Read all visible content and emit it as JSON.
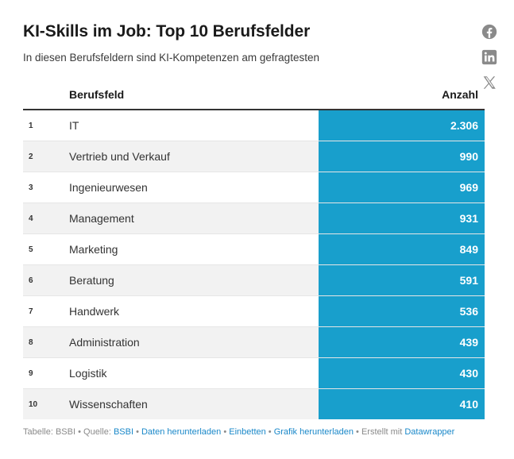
{
  "header": {
    "title": "KI-Skills im Job: Top 10 Berufsfelder",
    "subtitle": "In diesen Berufsfeldern sind KI-Kompetenzen am gefragtesten"
  },
  "share": {
    "icons": [
      "facebook-icon",
      "linkedin-icon",
      "x-icon"
    ],
    "icon_color": "#8a8a8a"
  },
  "chart_data": {
    "type": "table",
    "title": "KI-Skills im Job: Top 10 Berufsfelder",
    "subtitle": "In diesen Berufsfeldern sind KI-Kompetenzen am gefragtesten",
    "columns": [
      "",
      "Berufsfeld",
      "Anzahl"
    ],
    "rows": [
      {
        "rank": "1",
        "field": "IT",
        "count": "2.306",
        "value": 2306
      },
      {
        "rank": "2",
        "field": "Vertrieb und Verkauf",
        "count": "990",
        "value": 990
      },
      {
        "rank": "3",
        "field": "Ingenieurwesen",
        "count": "969",
        "value": 969
      },
      {
        "rank": "4",
        "field": "Management",
        "count": "931",
        "value": 931
      },
      {
        "rank": "5",
        "field": "Marketing",
        "count": "849",
        "value": 849
      },
      {
        "rank": "6",
        "field": "Beratung",
        "count": "591",
        "value": 591
      },
      {
        "rank": "7",
        "field": "Handwerk",
        "count": "536",
        "value": 536
      },
      {
        "rank": "8",
        "field": "Administration",
        "count": "439",
        "value": 439
      },
      {
        "rank": "9",
        "field": "Logistik",
        "count": "430",
        "value": 430
      },
      {
        "rank": "10",
        "field": "Wissenschaften",
        "count": "410",
        "value": 410
      }
    ],
    "highlight_color": "#189fcc"
  },
  "footer": {
    "table_label": "Tabelle: BSBI",
    "source_label": "Quelle:",
    "source_link": "BSBI",
    "download_data": "Daten herunterladen",
    "embed": "Einbetten",
    "download_graphic": "Grafik herunterladen",
    "created_with": "Erstellt mit",
    "datawrapper": "Datawrapper"
  }
}
